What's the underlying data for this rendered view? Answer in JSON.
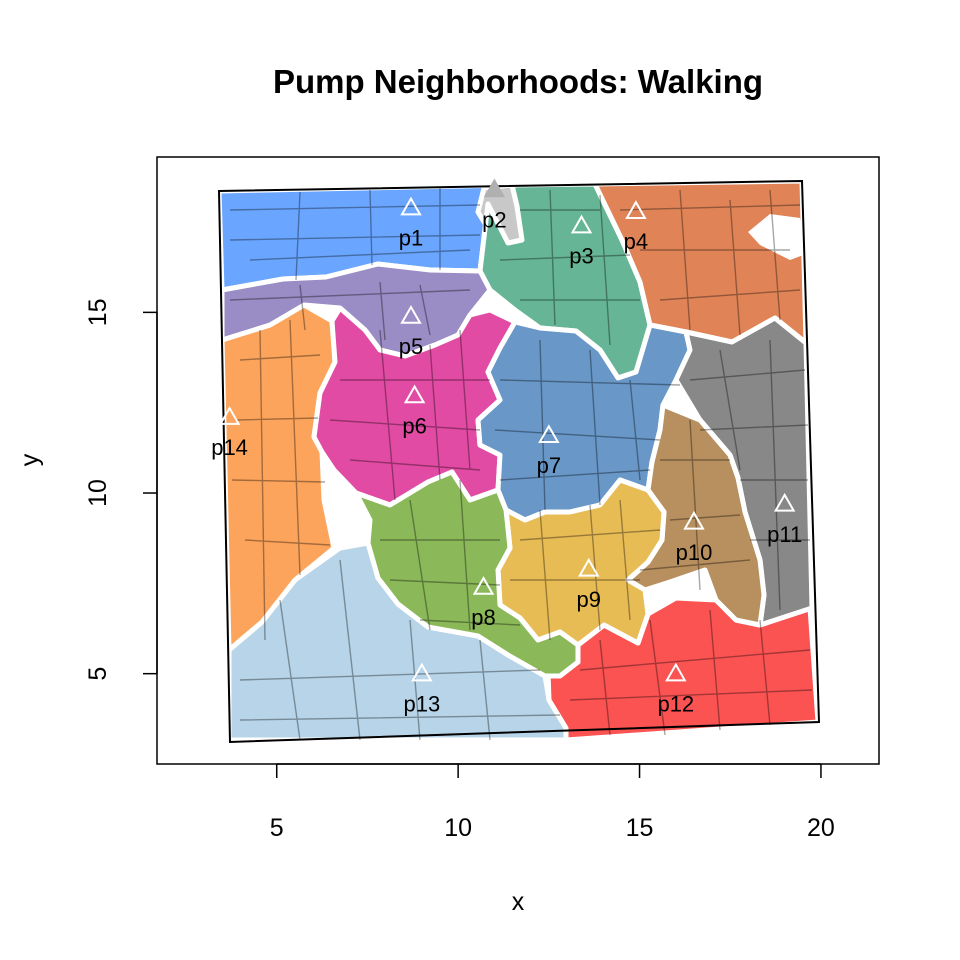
{
  "chart_data": {
    "type": "scatter",
    "title": "Pump Neighborhoods: Walking",
    "xlabel": "x",
    "ylabel": "y",
    "xlim": [
      1.7,
      21.6
    ],
    "ylim": [
      2.5,
      19.3
    ],
    "xticks": [
      5,
      10,
      15,
      20
    ],
    "yticks": [
      5,
      10,
      15
    ],
    "grid": false,
    "legend": "none",
    "pumps": [
      {
        "label": "p1",
        "x": 8.7,
        "y": 17.9,
        "color": "#6aa6ff",
        "active": true
      },
      {
        "label": "p2",
        "x": 11.0,
        "y": 18.4,
        "color": "#c8c8c8",
        "active": false
      },
      {
        "label": "p3",
        "x": 13.4,
        "y": 17.4,
        "color": "#66b596",
        "active": true
      },
      {
        "label": "p4",
        "x": 14.9,
        "y": 17.8,
        "color": "#e08458",
        "active": true
      },
      {
        "label": "p5",
        "x": 8.7,
        "y": 14.9,
        "color": "#9a8cc4",
        "active": true
      },
      {
        "label": "p6",
        "x": 8.8,
        "y": 12.7,
        "color": "#e24ba3",
        "active": true
      },
      {
        "label": "p7",
        "x": 12.5,
        "y": 11.6,
        "color": "#6897c8",
        "active": true
      },
      {
        "label": "p8",
        "x": 10.7,
        "y": 7.4,
        "color": "#8bb859",
        "active": true
      },
      {
        "label": "p9",
        "x": 13.6,
        "y": 7.9,
        "color": "#e8bc55",
        "active": true
      },
      {
        "label": "p10",
        "x": 16.5,
        "y": 9.2,
        "color": "#b8905f",
        "active": true
      },
      {
        "label": "p11",
        "x": 19.0,
        "y": 9.7,
        "color": "#888888",
        "active": true
      },
      {
        "label": "p12",
        "x": 16.0,
        "y": 5.0,
        "color": "#fb5252",
        "active": true
      },
      {
        "label": "p13",
        "x": 9.0,
        "y": 5.0,
        "color": "#b7d4e8",
        "active": true
      },
      {
        "label": "p14",
        "x": 3.7,
        "y": 12.1,
        "color": "#fca45b",
        "active": true
      }
    ]
  }
}
